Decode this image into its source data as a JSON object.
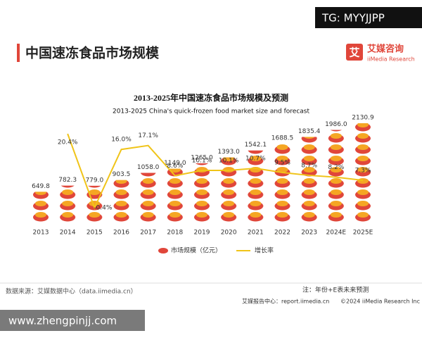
{
  "header": {
    "title": "中国速冻食品市场规模",
    "logo": "艾媒咨询",
    "logo_sub": "iiMedia Research",
    "watermark": "TG: MYYJJPP"
  },
  "chart_data": {
    "type": "bar-line",
    "title": "2013-2025年中国速冻食品市场规模及预测",
    "subtitle": "2013-2025 China's quick-frozen food market size and forecast",
    "categories": [
      "2013",
      "2014",
      "2015",
      "2016",
      "2017",
      "2018",
      "2019",
      "2020",
      "2021",
      "2022",
      "2023",
      "2024E",
      "2025E"
    ],
    "series": [
      {
        "name": "市场规模（亿元）",
        "color": "#e0463a",
        "type": "bar",
        "values": [
          649.8,
          782.3,
          779.0,
          903.5,
          1058.0,
          1149.0,
          1265.0,
          1393.0,
          1542.1,
          1688.5,
          1835.4,
          1986.0,
          2130.9
        ],
        "value_labels": [
          "649.8",
          "782.3",
          "779.0",
          "903.5",
          "1058.0",
          "1149.0",
          "1265.0",
          "1393.0",
          "1542.1",
          "1688.5",
          "1835.4",
          "1986.0",
          "2130.9"
        ]
      },
      {
        "name": "增长率",
        "color": "#f0c419",
        "type": "line",
        "values": [
          null,
          20.4,
          -0.4,
          16.0,
          17.1,
          8.6,
          10.1,
          10.1,
          10.7,
          9.5,
          8.7,
          8.2,
          7.3
        ],
        "value_labels": [
          null,
          "20.4%",
          "-0.4%",
          "16.0%",
          "17.1%",
          "8.6%",
          "10.1%",
          "10.1%",
          "10.7%",
          "9.5%",
          "8.7%",
          "8.2%",
          "7.3%"
        ]
      }
    ]
  },
  "footer": {
    "source": "数据来源：艾媒数据中心（data.iimedia.cn）",
    "note": "注：年份+E表未来预测",
    "report": "艾媒报告中心：report.iimedia.cn",
    "copyright": "©2024  iiMedia Research  Inc",
    "site": "www.zhengpinjj.com"
  }
}
